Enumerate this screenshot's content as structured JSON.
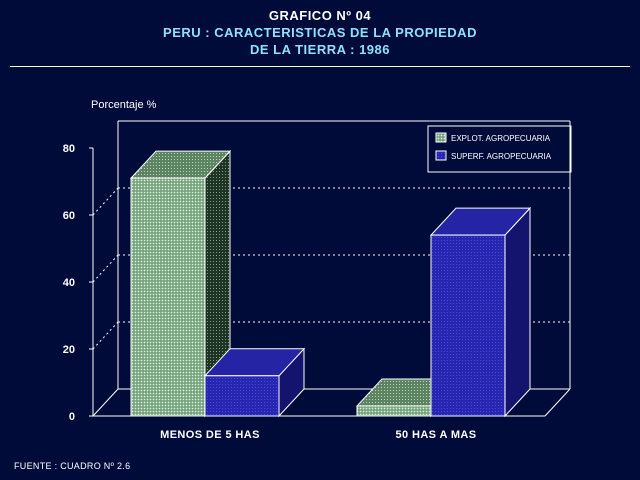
{
  "header": {
    "line1": "GRAFICO Nº 04",
    "line2": "PERU : CARACTERISTICAS DE LA PROPIEDAD",
    "line3": "DE LA TIERRA : 1986"
  },
  "footer": {
    "source": "FUENTE : CUADRO Nº 2.6"
  },
  "colors": {
    "background": "#000b3a",
    "title": "#ffffff",
    "subtitle": "#8fe0ff",
    "series1_front": "#9ec4a4",
    "series1_side": "#2f4a36",
    "series1_top": "#6f9878",
    "series2_front": "#2a2ab8",
    "series2_side": "#14146e",
    "series2_top": "#2424a4"
  },
  "chart_data": {
    "type": "bar",
    "style": "3d",
    "title": "PERU : CARACTERISTICAS DE LA PROPIEDAD DE LA TIERRA : 1986",
    "xlabel": "",
    "ylabel": "Porcentaje %",
    "ylim": [
      0,
      80
    ],
    "yticks": [
      0,
      20,
      40,
      60,
      80
    ],
    "grid": true,
    "legend_position": "top-right",
    "categories": [
      "MENOS DE 5 HAS",
      "50 HAS A MAS"
    ],
    "series": [
      {
        "name": "EXPLOT. AGROPECUARIA",
        "values": [
          71,
          3
        ]
      },
      {
        "name": "SUPERF. AGROPECUARIA",
        "values": [
          12,
          54
        ]
      }
    ]
  }
}
